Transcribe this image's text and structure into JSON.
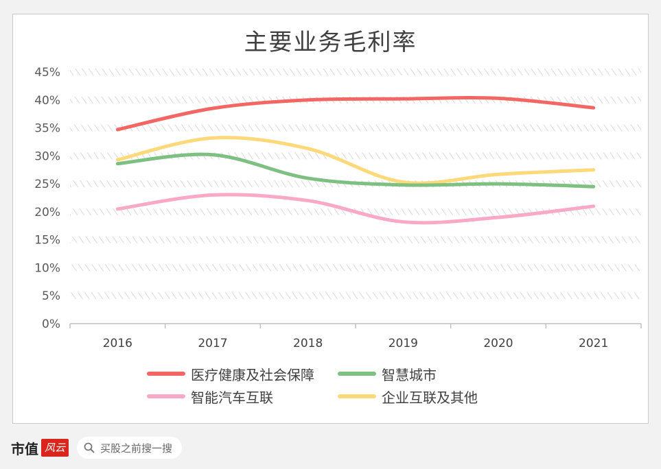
{
  "chart_data": {
    "type": "line",
    "title": "主要业务毛利率",
    "categories": [
      "2016",
      "2017",
      "2018",
      "2019",
      "2020",
      "2021"
    ],
    "y_ticks": [
      "0%",
      "5%",
      "10%",
      "15%",
      "20%",
      "25%",
      "30%",
      "35%",
      "40%",
      "45%"
    ],
    "ylim": [
      0,
      45
    ],
    "grid": true,
    "legend_position": "bottom",
    "series": [
      {
        "name": "医疗健康及社会保障",
        "color": "#f26663",
        "values": [
          34.7,
          38.5,
          40.0,
          40.2,
          40.3,
          38.6
        ]
      },
      {
        "name": "智慧城市",
        "color": "#7ebf82",
        "values": [
          28.6,
          30.2,
          26.0,
          24.8,
          25.0,
          24.5
        ]
      },
      {
        "name": "智能汽车互联",
        "color": "#f9a8c6",
        "values": [
          20.5,
          23.0,
          22.0,
          18.2,
          19.0,
          21.0
        ]
      },
      {
        "name": "企业互联及其他",
        "color": "#fdd97a",
        "values": [
          29.3,
          33.2,
          31.3,
          25.3,
          26.7,
          27.5
        ]
      }
    ]
  },
  "footer": {
    "brand": "市值",
    "brand_logo": "风云",
    "search_placeholder": "买股之前搜一搜",
    "search_icon": "search-icon"
  }
}
